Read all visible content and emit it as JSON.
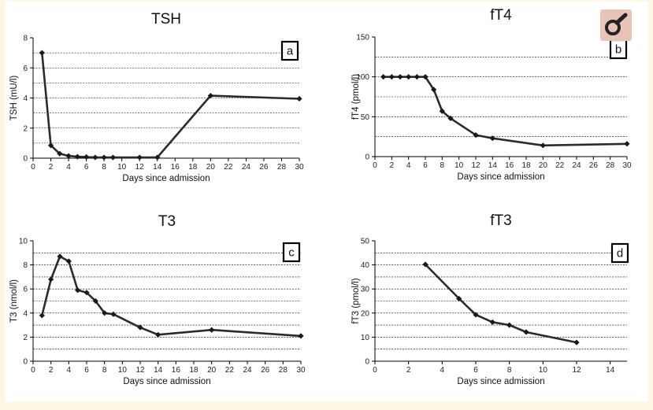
{
  "chart_data": [
    {
      "type": "line",
      "title": "TSH",
      "panel_label": "a",
      "xlabel": "Days since admission",
      "ylabel": "TSH (mU/l)",
      "xlim": [
        0,
        30
      ],
      "ylim": [
        0,
        8
      ],
      "xticks": [
        0,
        2,
        4,
        6,
        8,
        10,
        12,
        14,
        16,
        18,
        20,
        22,
        24,
        26,
        28,
        30
      ],
      "yticks": [
        0,
        2,
        4,
        6,
        8
      ],
      "gridlines": [
        1,
        2,
        3,
        4,
        5,
        6,
        7
      ],
      "x": [
        1,
        2,
        3,
        4,
        5,
        6,
        7,
        8,
        9,
        12,
        14,
        20,
        30
      ],
      "y": [
        7.0,
        0.85,
        0.3,
        0.15,
        0.1,
        0.08,
        0.05,
        0.05,
        0.05,
        0.05,
        0.05,
        4.15,
        3.95
      ]
    },
    {
      "type": "line",
      "title": "fT4",
      "panel_label": "b",
      "xlabel": "Days since admission",
      "ylabel": "fT4 (pmol/l)",
      "xlim": [
        0,
        30
      ],
      "ylim": [
        0,
        150
      ],
      "xticks": [
        0,
        2,
        4,
        6,
        8,
        10,
        12,
        14,
        16,
        18,
        20,
        22,
        24,
        26,
        28,
        30
      ],
      "yticks": [
        0,
        50,
        100,
        150
      ],
      "gridlines": [
        25,
        50,
        75,
        100,
        125
      ],
      "x": [
        1,
        2,
        3,
        4,
        5,
        6,
        7,
        8,
        9,
        12,
        14,
        20,
        30
      ],
      "y": [
        100,
        100,
        100,
        100,
        100,
        100,
        84,
        57,
        48,
        27,
        23,
        14,
        16
      ]
    },
    {
      "type": "line",
      "title": "T3",
      "panel_label": "c",
      "xlabel": "Days since admission",
      "ylabel": "T3 (nmol/l)",
      "xlim": [
        0,
        30
      ],
      "ylim": [
        0,
        10
      ],
      "xticks": [
        0,
        2,
        4,
        6,
        8,
        10,
        12,
        14,
        16,
        18,
        20,
        22,
        24,
        26,
        28,
        30
      ],
      "yticks": [
        0,
        2,
        4,
        6,
        8,
        10
      ],
      "gridlines": [
        1,
        2,
        3,
        4,
        5,
        6,
        7,
        8,
        9
      ],
      "x": [
        1,
        2,
        3,
        4,
        5,
        6,
        7,
        8,
        9,
        12,
        14,
        20,
        30
      ],
      "y": [
        3.8,
        6.8,
        8.7,
        8.3,
        5.9,
        5.7,
        5.0,
        4.0,
        3.9,
        2.8,
        2.2,
        2.6,
        2.1
      ]
    },
    {
      "type": "line",
      "title": "fT3",
      "panel_label": "d",
      "xlabel": "Days since admission",
      "ylabel": "fT3 (pmol/l)",
      "xlim": [
        0,
        15
      ],
      "ylim": [
        0,
        50
      ],
      "xticks": [
        0,
        2,
        4,
        6,
        8,
        10,
        12,
        14
      ],
      "yticks": [
        0,
        10,
        20,
        30,
        40,
        50
      ],
      "gridlines": [
        5,
        10,
        15,
        20,
        25,
        30,
        35,
        40,
        45
      ],
      "x": [
        3,
        5,
        6,
        7,
        8,
        9,
        12
      ],
      "y": [
        40.2,
        26.0,
        19.3,
        16.2,
        15.0,
        12.1,
        7.8
      ]
    }
  ],
  "zoom_tool": {
    "icon": "zoom-icon"
  }
}
